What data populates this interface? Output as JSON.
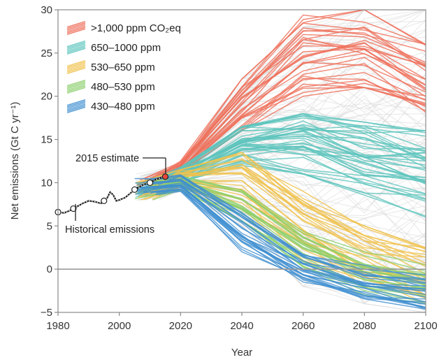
{
  "chart_data": {
    "type": "line",
    "xlabel": "Year",
    "ylabel": "Net emissions (Gt C yr⁻¹)",
    "xlim": [
      1980,
      2100
    ],
    "ylim": [
      -5,
      30
    ],
    "x_ticks": [
      "1980",
      "2000",
      "2020",
      "2040",
      "2060",
      "2080",
      "2100"
    ],
    "y_ticks": [
      "−5",
      "0",
      "5",
      "10",
      "15",
      "20",
      "25",
      "30"
    ],
    "legend_position": "top-left",
    "legend": [
      {
        "label": ">1,000 ppm CO₂eq",
        "color": "#ef6f5a"
      },
      {
        "label": "650–1000 ppm",
        "color": "#5cc4bd"
      },
      {
        "label": "530–650 ppm",
        "color": "#f0c24c"
      },
      {
        "label": "480–530 ppm",
        "color": "#8ccf6d"
      },
      {
        "label": "430–480 ppm",
        "color": "#3f8fd1"
      }
    ],
    "annotations": {
      "estimate": "2015 estimate",
      "historical": "Historical emissions"
    },
    "historical": {
      "x": [
        1980,
        1982,
        1984,
        1986,
        1988,
        1990,
        1992,
        1994,
        1995,
        1996,
        1997,
        1998,
        1999,
        2000,
        2002,
        2004,
        2006,
        2008,
        2010,
        2012,
        2014,
        2015
      ],
      "y": [
        6.6,
        6.5,
        6.8,
        7.2,
        7.6,
        7.9,
        7.8,
        7.6,
        7.9,
        8.2,
        8.9,
        8.6,
        7.9,
        8.0,
        8.3,
        8.9,
        9.4,
        9.8,
        10.0,
        10.4,
        10.6,
        10.7
      ],
      "markers_x": [
        1980,
        1985,
        1995,
        2005,
        2010,
        2015
      ],
      "markers_y": [
        6.6,
        7.0,
        7.9,
        9.2,
        10.0,
        10.7
      ]
    },
    "scenario_groups": [
      {
        "name": "grey",
        "color": "#d9d9d9",
        "count": 120,
        "x": [
          2005,
          2020,
          2040,
          2060,
          2080,
          2100
        ],
        "start": [
          8.0,
          11.0
        ],
        "y2020": [
          9.0,
          12.0
        ],
        "y2040": [
          5.0,
          22.0
        ],
        "y2060": [
          -2.0,
          28.0
        ],
        "y2080": [
          -4.0,
          30.0
        ],
        "y2100": [
          -5.0,
          30.0
        ]
      },
      {
        "name": "red",
        "color": "#ef6f5a",
        "count": 30,
        "x": [
          2005,
          2020,
          2040,
          2060,
          2080,
          2100
        ],
        "start": [
          8.5,
          10.5
        ],
        "y2020": [
          11.0,
          12.5
        ],
        "y2040": [
          16.0,
          22.0
        ],
        "y2060": [
          20.0,
          30.0
        ],
        "y2080": [
          21.0,
          30.0
        ],
        "y2100": [
          18.0,
          26.0
        ]
      },
      {
        "name": "teal",
        "color": "#5cc4bd",
        "count": 40,
        "x": [
          2005,
          2020,
          2040,
          2060,
          2080,
          2100
        ],
        "start": [
          8.3,
          10.0
        ],
        "y2020": [
          10.0,
          11.8
        ],
        "y2040": [
          12.0,
          16.5
        ],
        "y2060": [
          11.0,
          18.0
        ],
        "y2080": [
          8.0,
          17.0
        ],
        "y2100": [
          6.0,
          16.0
        ]
      },
      {
        "name": "yellow",
        "color": "#f0c24c",
        "count": 30,
        "x": [
          2005,
          2020,
          2040,
          2060,
          2080,
          2100
        ],
        "start": [
          8.0,
          10.0
        ],
        "y2020": [
          9.5,
          11.5
        ],
        "y2040": [
          7.0,
          13.5
        ],
        "y2060": [
          1.0,
          9.0
        ],
        "y2080": [
          -2.0,
          5.0
        ],
        "y2100": [
          -4.0,
          2.5
        ]
      },
      {
        "name": "green",
        "color": "#8ccf6d",
        "count": 20,
        "x": [
          2005,
          2020,
          2040,
          2060,
          2080,
          2100
        ],
        "start": [
          8.0,
          10.0
        ],
        "y2020": [
          9.0,
          11.0
        ],
        "y2040": [
          5.0,
          10.0
        ],
        "y2060": [
          0.0,
          5.0
        ],
        "y2080": [
          -3.0,
          2.0
        ],
        "y2100": [
          -4.0,
          0.5
        ]
      },
      {
        "name": "blue",
        "color": "#3f8fd1",
        "count": 25,
        "x": [
          2005,
          2020,
          2040,
          2060,
          2080,
          2100
        ],
        "start": [
          8.5,
          10.5
        ],
        "y2020": [
          9.0,
          11.0
        ],
        "y2040": [
          2.0,
          7.0
        ],
        "y2060": [
          -1.5,
          2.0
        ],
        "y2080": [
          -3.5,
          0.5
        ],
        "y2100": [
          -5.0,
          -0.5
        ]
      }
    ]
  }
}
